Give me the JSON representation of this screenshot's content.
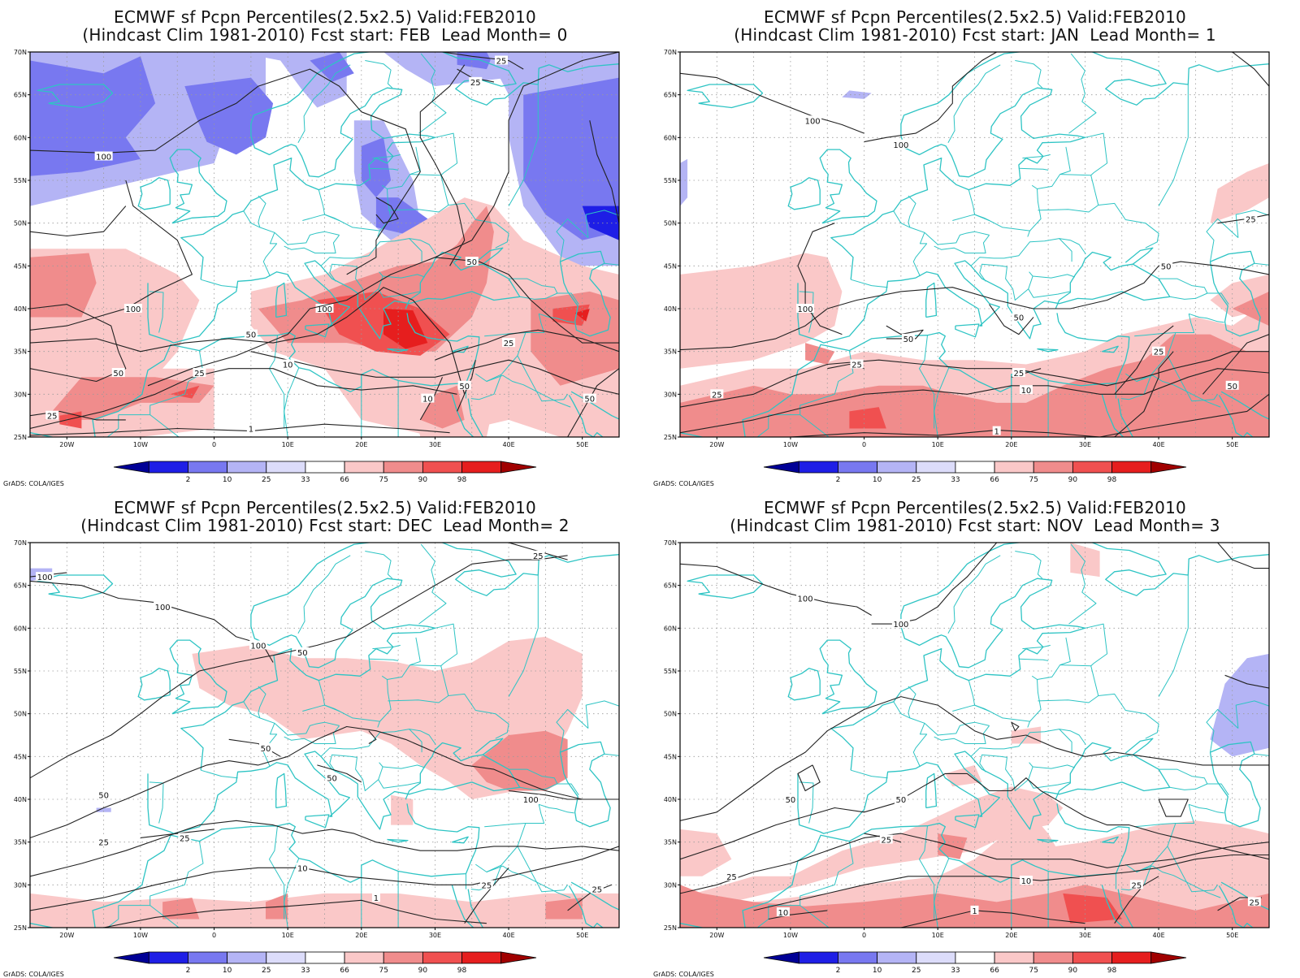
{
  "panels": [
    {
      "title_line1": "ECMWF sf Pcpn Percentiles(2.5x2.5) Valid:FEB2010",
      "title_line2": "(Hindcast Clim 1981-2010) Fcst start: FEB  Lead Month= 0"
    },
    {
      "title_line1": "ECMWF sf Pcpn Percentiles(2.5x2.5) Valid:FEB2010",
      "title_line2": "(Hindcast Clim 1981-2010) Fcst start: JAN  Lead Month= 1"
    },
    {
      "title_line1": "ECMWF sf Pcpn Percentiles(2.5x2.5) Valid:FEB2010",
      "title_line2": "(Hindcast Clim 1981-2010) Fcst start: DEC  Lead Month= 2"
    },
    {
      "title_line1": "ECMWF sf Pcpn Percentiles(2.5x2.5) Valid:FEB2010",
      "title_line2": "(Hindcast Clim 1981-2010) Fcst start: NOV  Lead Month= 3"
    }
  ],
  "lat_labels": [
    "70N",
    "65N",
    "60N",
    "55N",
    "50N",
    "45N",
    "40N",
    "35N",
    "30N",
    "25N"
  ],
  "lon_labels": [
    "20W",
    "10W",
    "0",
    "10E",
    "20E",
    "30E",
    "40E",
    "50E"
  ],
  "colorbar": {
    "labels": [
      "2",
      "10",
      "25",
      "33",
      "66",
      "75",
      "90",
      "98"
    ],
    "colors": [
      "#000096",
      "#1e1ee6",
      "#7878f0",
      "#b4b4f5",
      "#dcdcfa",
      "#ffffff",
      "#fac8c8",
      "#f08c8c",
      "#f05050",
      "#e61e1e",
      "#a00000"
    ]
  },
  "contour_labels": [
    "1",
    "10",
    "25",
    "50",
    "100"
  ],
  "credit": "GrADS: COLA/IGES",
  "colors": {
    "coastline": "#2ec4c4",
    "contour": "#222222",
    "grid": "#9a9a9a"
  }
}
